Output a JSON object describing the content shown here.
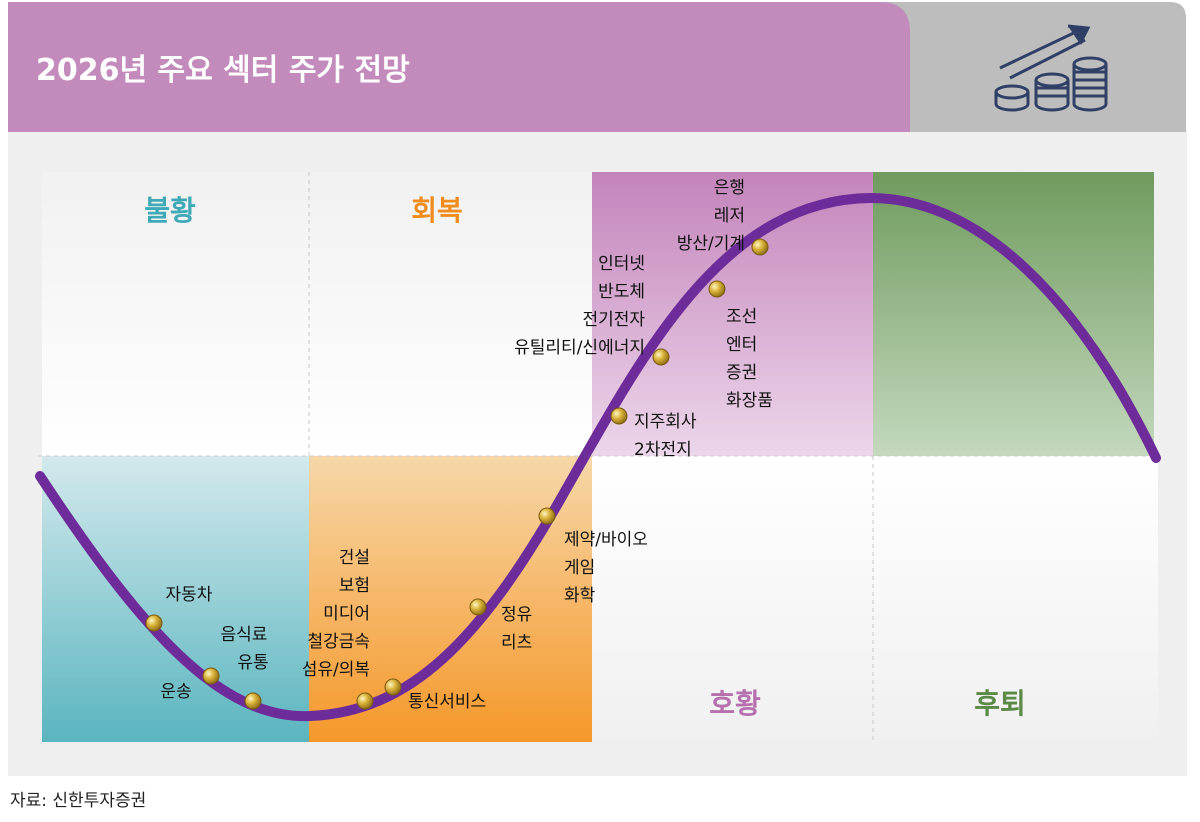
{
  "title": "2026년 주요 섹터 주가 전망",
  "source": "자료: 신한투자증권",
  "colors": {
    "header": "#c48bbd",
    "header_gray": "#bcbcbc",
    "curve": "#6e2c9a",
    "recession": "#52b3bf",
    "recovery": "#f59a28",
    "boom": "#c48bbd",
    "downturn": "#74a062",
    "dot": "#c9a227"
  },
  "icon": "coins-growth-icon",
  "phases": {
    "recession": "불황",
    "recovery": "회복",
    "boom": "호황",
    "downturn": "후퇴"
  },
  "sectors": {
    "g_auto": [
      "자동차"
    ],
    "g_food": [
      "음식료",
      "유통"
    ],
    "g_transport": [
      "운송"
    ],
    "g_construction": [
      "건설",
      "보험",
      "미디어",
      "철강금속",
      "섬유/의복"
    ],
    "g_telecom": [
      "통신서비스"
    ],
    "g_refining": [
      "정유",
      "리츠"
    ],
    "g_pharma": [
      "제약/바이오",
      "게임",
      "화학"
    ],
    "g_holding": [
      "지주회사",
      "2차전지"
    ],
    "g_internet": [
      "인터넷",
      "반도체",
      "전기전자",
      "유틸리티/신에너지"
    ],
    "g_ship": [
      "조선",
      "엔터",
      "증권",
      "화장품"
    ],
    "g_bank": [
      "은행",
      "레저",
      "방산/기계"
    ]
  }
}
